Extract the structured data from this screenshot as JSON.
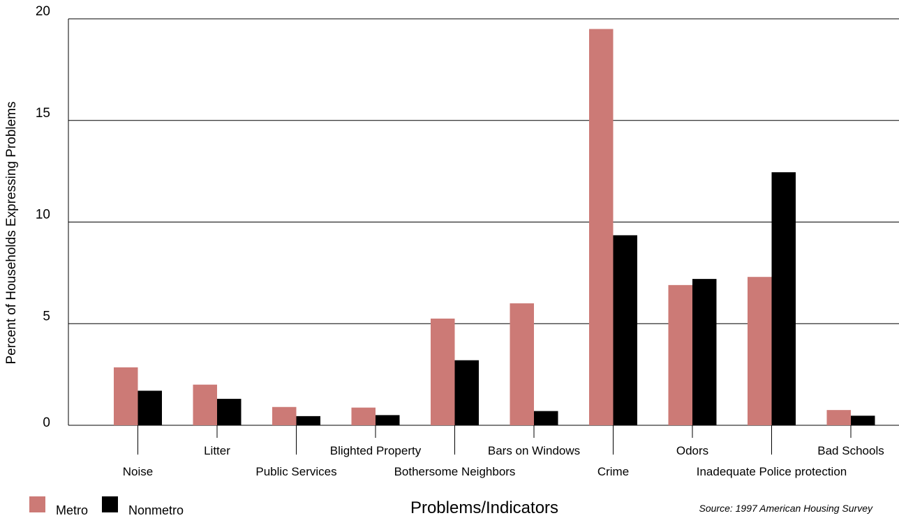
{
  "chart_data": {
    "type": "bar",
    "ylabel": "Percent of Households Expressing Problems",
    "xlabel": "Problems/Indicators",
    "source": "Source: 1997 American Housing Survey",
    "ylim": [
      0,
      20
    ],
    "yticks": [
      "0",
      "5",
      "10",
      "15",
      "20"
    ],
    "grid": true,
    "legend_position": "bottom-left",
    "categories": [
      "Noise",
      "Litter",
      "Public Services",
      "Blighted Property",
      "Bothersome Neighbors",
      "Bars on Windows",
      "Crime",
      "Odors",
      "Inadequate Police protection",
      "Bad Schools"
    ],
    "series": [
      {
        "name": "Metro",
        "color": "#cc7a76",
        "values": [
          2.85,
          2.0,
          0.9,
          0.87,
          5.25,
          6.0,
          19.5,
          6.9,
          7.3,
          0.75
        ]
      },
      {
        "name": "Nonmetro",
        "color": "#000000",
        "values": [
          1.7,
          1.3,
          0.45,
          0.5,
          3.2,
          0.7,
          9.35,
          7.2,
          12.45,
          0.47
        ]
      }
    ]
  }
}
